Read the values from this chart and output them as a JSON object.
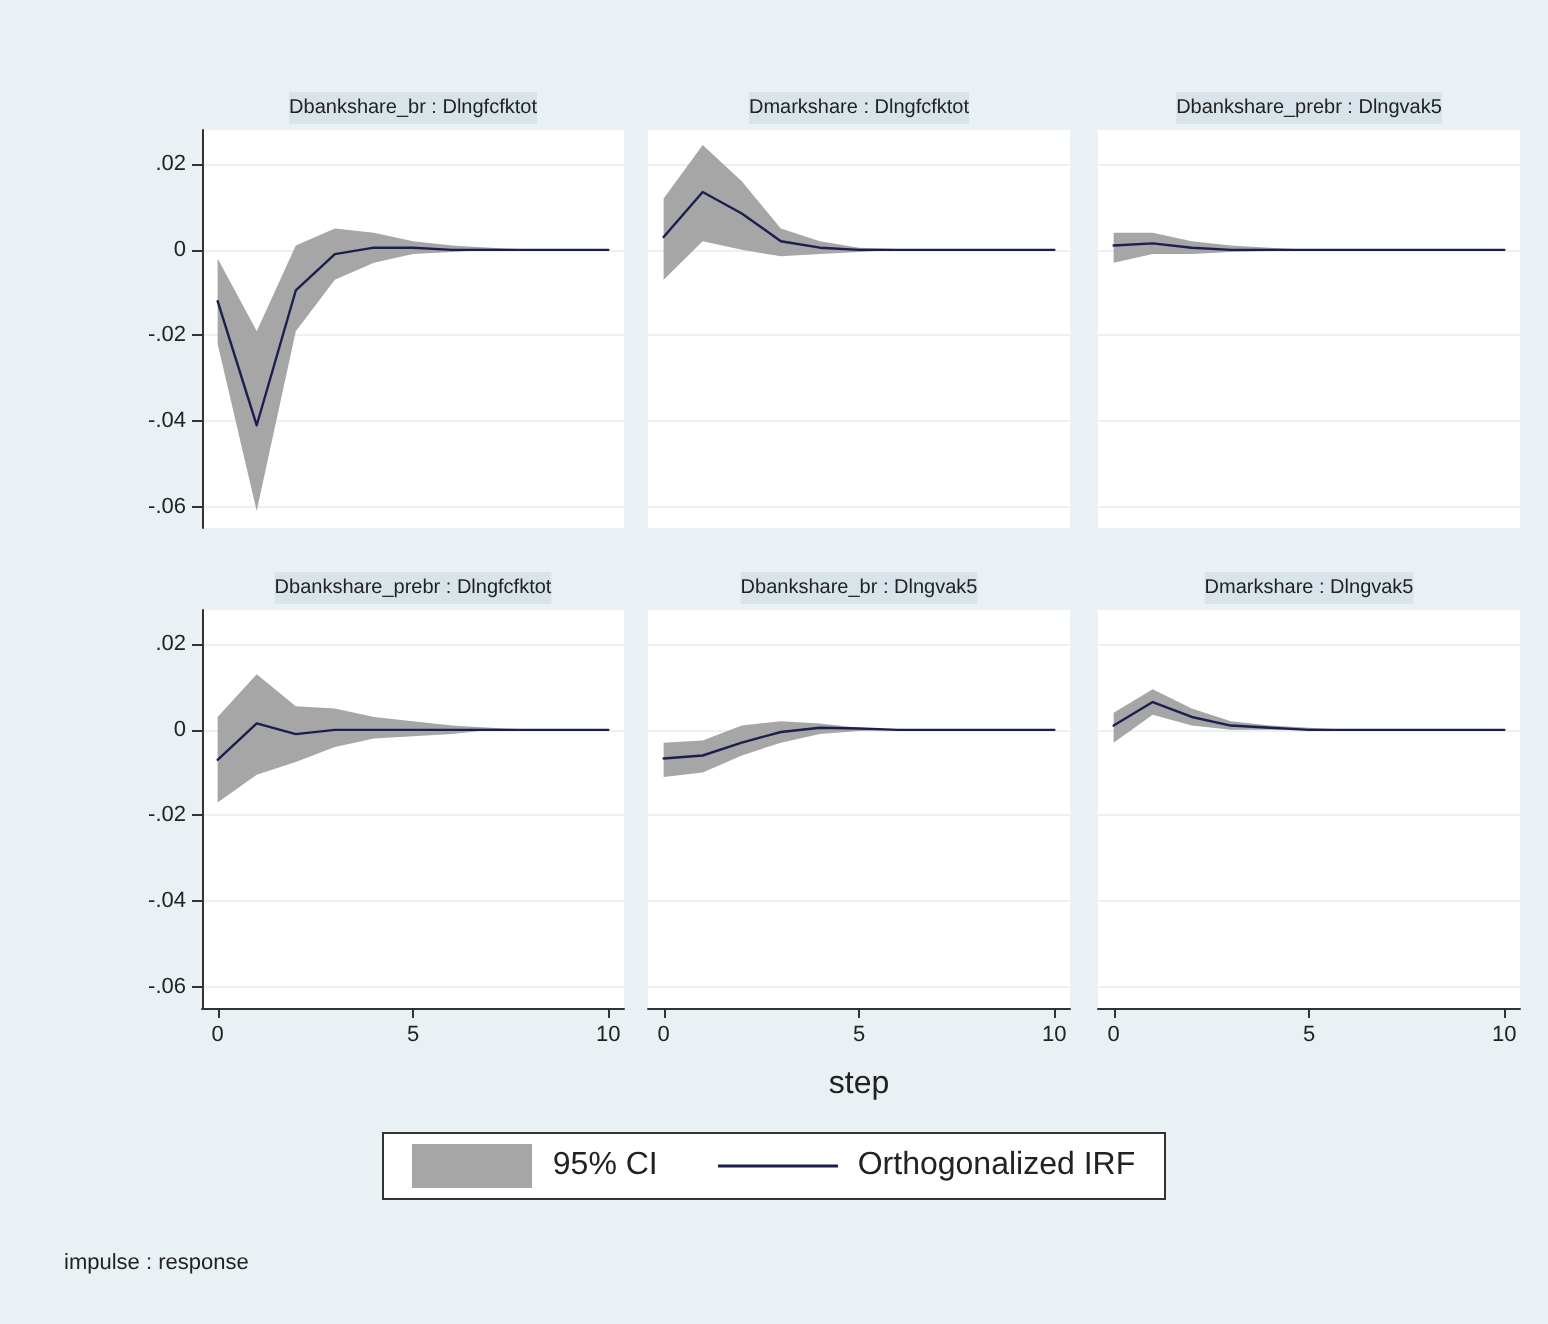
{
  "chart_data": [
    {
      "type": "line",
      "title": "Dbankshare_br : Dlngfcfktot",
      "x": [
        0,
        1,
        2,
        3,
        4,
        5,
        6,
        7,
        8,
        9,
        10
      ],
      "xlim": [
        -0.4,
        10.4
      ],
      "ylim": [
        -0.065,
        0.028
      ],
      "yticks": [
        {
          "value": -0.06,
          "label": "-.06"
        },
        {
          "value": -0.04,
          "label": "-.04"
        },
        {
          "value": -0.02,
          "label": "-.02"
        },
        {
          "value": 0,
          "label": "0"
        },
        {
          "value": 0.02,
          "label": ".02"
        }
      ],
      "grid": "y",
      "tick_labels": "y",
      "legend": false,
      "series": [
        {
          "color": "#1b1f4f",
          "values": [
            -0.012,
            -0.041,
            -0.0095,
            -0.001,
            0.0005,
            0.0005,
            0,
            0,
            0,
            0,
            0
          ],
          "lower": [
            -0.022,
            -0.061,
            -0.019,
            -0.007,
            -0.003,
            -0.001,
            -0.0005,
            0,
            0,
            0,
            0
          ],
          "upper": [
            -0.002,
            -0.019,
            0.001,
            0.005,
            0.004,
            0.002,
            0.001,
            0.0005,
            0,
            0,
            0
          ]
        }
      ]
    },
    {
      "type": "line",
      "title": "Dmarkshare : Dlngfcfktot",
      "x": [
        0,
        1,
        2,
        3,
        4,
        5,
        6,
        7,
        8,
        9,
        10
      ],
      "xlim": [
        -0.4,
        10.4
      ],
      "ylim": [
        -0.065,
        0.028
      ],
      "yticks": [
        -0.06,
        -0.04,
        -0.02,
        0,
        0.02
      ],
      "grid": "y",
      "tick_labels": false,
      "legend": false,
      "series": [
        {
          "color": "#1b1f4f",
          "values": [
            0.003,
            0.0135,
            0.0085,
            0.002,
            0.0005,
            0,
            0,
            0,
            0,
            0,
            0
          ],
          "lower": [
            -0.007,
            0.002,
            0,
            -0.0015,
            -0.001,
            -0.0005,
            0,
            0,
            0,
            0,
            0
          ],
          "upper": [
            0.012,
            0.0245,
            0.016,
            0.005,
            0.002,
            0.0005,
            0.0002,
            0,
            0,
            0,
            0
          ]
        }
      ]
    },
    {
      "type": "line",
      "title": "Dbankshare_prebr : Dlngvak5",
      "x": [
        0,
        1,
        2,
        3,
        4,
        5,
        6,
        7,
        8,
        9,
        10
      ],
      "xlim": [
        -0.4,
        10.4
      ],
      "ylim": [
        -0.065,
        0.028
      ],
      "yticks": [
        -0.06,
        -0.04,
        -0.02,
        0,
        0.02
      ],
      "grid": "y",
      "tick_labels": false,
      "legend": false,
      "series": [
        {
          "color": "#1b1f4f",
          "values": [
            0.001,
            0.0015,
            0.0005,
            0,
            0,
            0,
            0,
            0,
            0,
            0,
            0
          ],
          "lower": [
            -0.003,
            -0.001,
            -0.001,
            -0.0005,
            -0.0003,
            0,
            0,
            0,
            0,
            0,
            0
          ],
          "upper": [
            0.004,
            0.004,
            0.002,
            0.001,
            0.0005,
            0,
            0,
            0,
            0,
            0,
            0
          ]
        }
      ]
    },
    {
      "type": "line",
      "title": "Dbankshare_prebr : Dlngfcfktot",
      "x": [
        0,
        1,
        2,
        3,
        4,
        5,
        6,
        7,
        8,
        9,
        10
      ],
      "xlim": [
        -0.4,
        10.4
      ],
      "xticks": [
        0,
        5,
        10
      ],
      "ylim": [
        -0.065,
        0.028
      ],
      "yticks": [
        {
          "value": -0.06,
          "label": "-.06"
        },
        {
          "value": -0.04,
          "label": "-.04"
        },
        {
          "value": -0.02,
          "label": "-.02"
        },
        {
          "value": 0,
          "label": "0"
        },
        {
          "value": 0.02,
          "label": ".02"
        }
      ],
      "grid": "y",
      "legend": false,
      "series": [
        {
          "color": "#1b1f4f",
          "values": [
            -0.007,
            0.0015,
            -0.001,
            0,
            0,
            0,
            0,
            0,
            0,
            0,
            0
          ],
          "lower": [
            -0.017,
            -0.0105,
            -0.0075,
            -0.004,
            -0.002,
            -0.0015,
            -0.001,
            0,
            0,
            0,
            0
          ],
          "upper": [
            0.003,
            0.013,
            0.0055,
            0.005,
            0.003,
            0.002,
            0.001,
            0.0005,
            0,
            0,
            0
          ]
        }
      ]
    },
    {
      "type": "line",
      "title": "Dbankshare_br : Dlngvak5",
      "xlabel": "step",
      "x": [
        0,
        1,
        2,
        3,
        4,
        5,
        6,
        7,
        8,
        9,
        10
      ],
      "xlim": [
        -0.4,
        10.4
      ],
      "xticks": [
        0,
        5,
        10
      ],
      "ylim": [
        -0.065,
        0.028
      ],
      "yticks": [
        -0.06,
        -0.04,
        -0.02,
        0,
        0.02
      ],
      "grid": "y",
      "tick_labels": "x",
      "legend": false,
      "series": [
        {
          "color": "#1b1f4f",
          "values": [
            -0.0067,
            -0.006,
            -0.003,
            -0.0005,
            0.0005,
            0.0003,
            0,
            0,
            0,
            0,
            0
          ],
          "lower": [
            -0.011,
            -0.01,
            -0.006,
            -0.003,
            -0.001,
            -0.0003,
            0,
            0,
            0,
            0,
            0
          ],
          "upper": [
            -0.003,
            -0.0025,
            0.001,
            0.002,
            0.0015,
            0.0005,
            0,
            0,
            0,
            0,
            0
          ]
        }
      ]
    },
    {
      "type": "line",
      "title": "Dmarkshare : Dlngvak5",
      "x": [
        0,
        1,
        2,
        3,
        4,
        5,
        6,
        7,
        8,
        9,
        10
      ],
      "xlim": [
        -0.4,
        10.4
      ],
      "xticks": [
        0,
        5,
        10
      ],
      "ylim": [
        -0.065,
        0.028
      ],
      "yticks": [
        -0.06,
        -0.04,
        -0.02,
        0,
        0.02
      ],
      "grid": "y",
      "tick_labels": "x",
      "legend": "bottom",
      "annotations": [
        "95% CI",
        "impulse : response"
      ],
      "series": [
        {
          "name": "Orthogonalized IRF",
          "color": "#1b1f4f",
          "values": [
            0.001,
            0.0065,
            0.003,
            0.001,
            0.0005,
            0,
            0,
            0,
            0,
            0,
            0
          ],
          "lower": [
            -0.003,
            0.0035,
            0.001,
            0,
            0,
            0,
            0,
            0,
            0,
            0,
            0
          ],
          "upper": [
            0.004,
            0.0095,
            0.005,
            0.002,
            0.001,
            0.0005,
            0,
            0,
            0,
            0,
            0
          ]
        }
      ]
    }
  ]
}
